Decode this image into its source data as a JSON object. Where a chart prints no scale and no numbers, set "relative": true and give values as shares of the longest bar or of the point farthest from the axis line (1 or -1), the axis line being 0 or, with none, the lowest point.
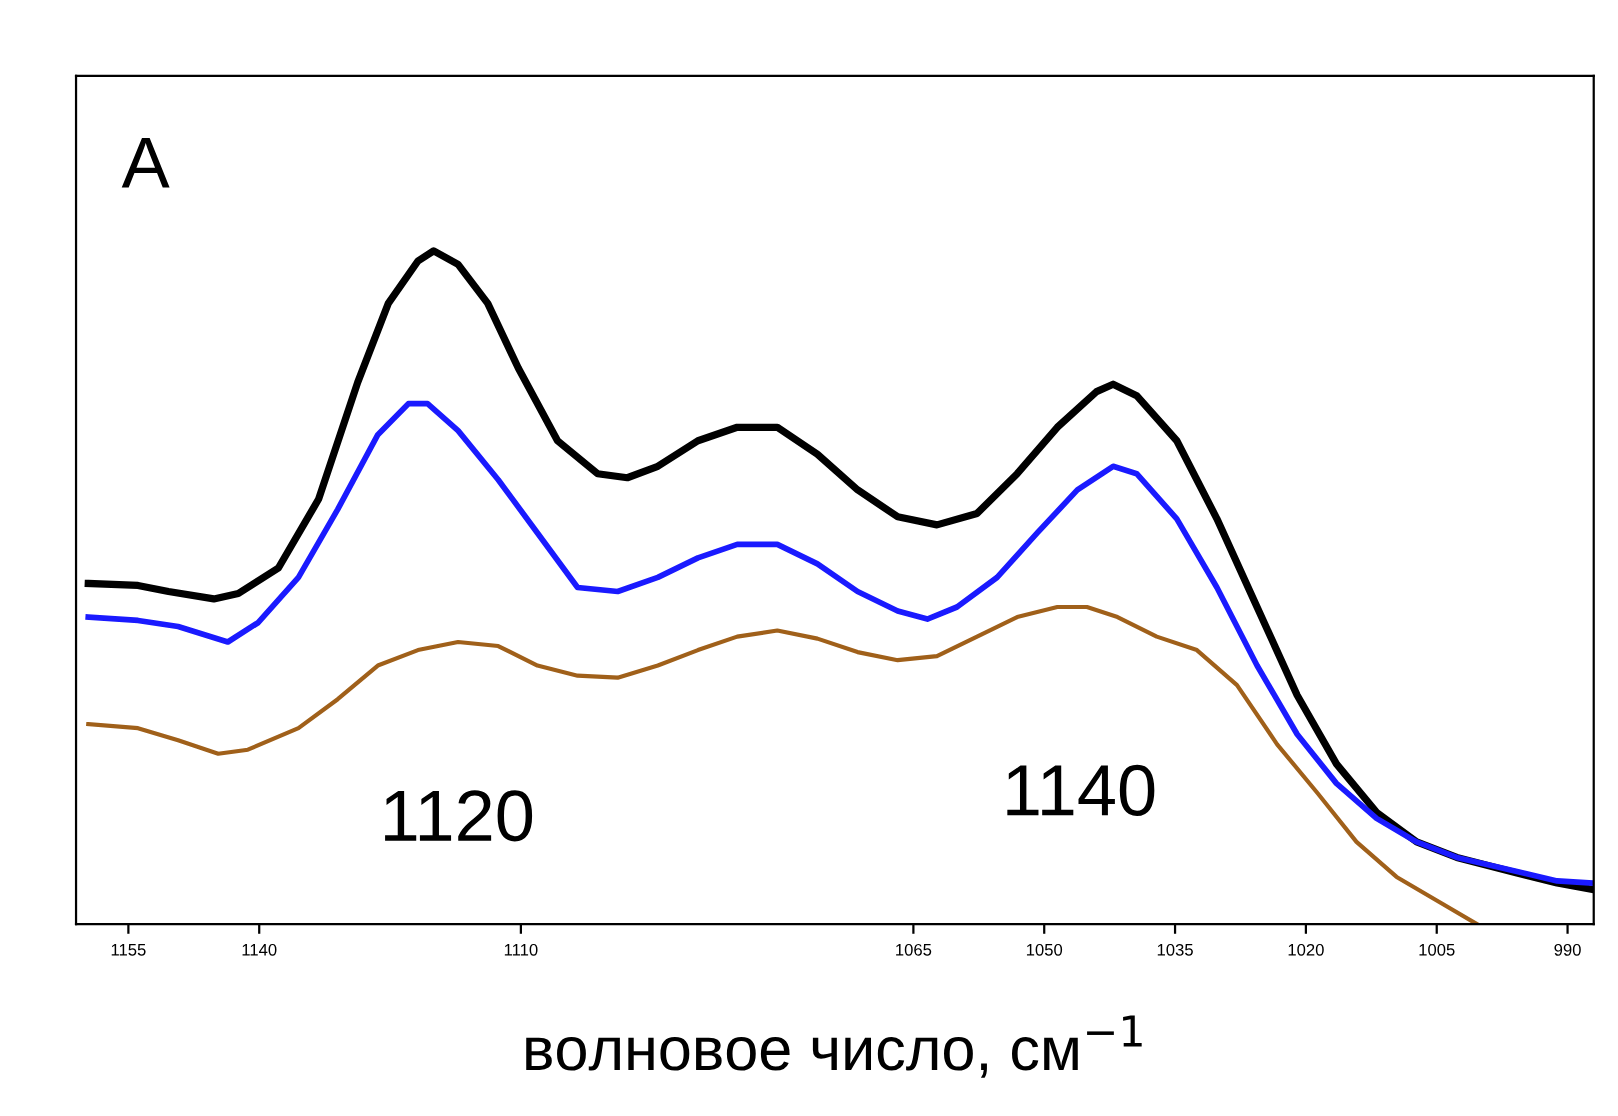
{
  "chart_data": {
    "type": "line",
    "relative": true,
    "xlabel": "волновое число, см$^{−1}$",
    "annotations": [
      "A",
      "1120",
      "1140"
    ],
    "xlim": [
      1161,
      987
    ],
    "xticks": [
      1155,
      1140,
      1110,
      1065,
      1050,
      1035,
      1020,
      1005,
      990
    ],
    "tick_labels": "x",
    "grid": false,
    "legend": false,
    "marker": "none",
    "line_style": "solid",
    "series": [
      {
        "color": "#000000",
        "x": [
          1159.6,
          1153.9,
          1150.4,
          1145.2,
          1142.4,
          1137.8,
          1133.2,
          1128.7,
          1125.2,
          1121.8,
          1120.0,
          1117.2,
          1113.8,
          1110.3,
          1105.8,
          1101.2,
          1097.8,
          1094.3,
          1089.7,
          1085.2,
          1080.6,
          1076.0,
          1071.4,
          1066.8,
          1062.3,
          1057.7,
          1053.1,
          1048.5,
          1044.0,
          1042.1,
          1039.4,
          1034.8,
          1030.2,
          1025.6,
          1021.0,
          1016.5,
          1011.9,
          1007.3,
          1002.7,
          995.8,
          991.2,
          987.4
        ],
        "values": [
          0.506,
          0.503,
          0.494,
          0.483,
          0.491,
          0.529,
          0.631,
          0.805,
          0.922,
          0.985,
          1,
          0.98,
          0.922,
          0.826,
          0.718,
          0.669,
          0.663,
          0.68,
          0.718,
          0.738,
          0.738,
          0.698,
          0.645,
          0.605,
          0.593,
          0.61,
          0.669,
          0.738,
          0.791,
          0.802,
          0.785,
          0.718,
          0.602,
          0.471,
          0.34,
          0.238,
          0.166,
          0.122,
          0.099,
          0.076,
          0.061,
          0.052
        ]
      },
      {
        "color": "#1a1aff",
        "x": [
          1159.6,
          1153.9,
          1149.3,
          1143.6,
          1140.1,
          1135.5,
          1131.0,
          1126.4,
          1122.9,
          1120.7,
          1117.2,
          1112.6,
          1108.1,
          1103.5,
          1098.9,
          1094.3,
          1089.7,
          1085.2,
          1080.6,
          1076.0,
          1071.4,
          1066.8,
          1063.4,
          1060.0,
          1055.4,
          1050.8,
          1046.2,
          1042.1,
          1039.4,
          1034.8,
          1030.2,
          1025.6,
          1021.0,
          1016.5,
          1011.9,
          1007.3,
          1002.7,
          995.8,
          991.2,
          987.4
        ],
        "values": [
          0.456,
          0.451,
          0.442,
          0.419,
          0.448,
          0.515,
          0.616,
          0.727,
          0.773,
          0.773,
          0.733,
          0.66,
          0.581,
          0.5,
          0.494,
          0.515,
          0.544,
          0.564,
          0.564,
          0.535,
          0.494,
          0.465,
          0.453,
          0.471,
          0.515,
          0.581,
          0.645,
          0.68,
          0.669,
          0.602,
          0.5,
          0.384,
          0.282,
          0.209,
          0.157,
          0.122,
          0.099,
          0.078,
          0.064,
          0.061
        ]
      },
      {
        "color": "#a0601a",
        "x": [
          1159.6,
          1153.9,
          1149.3,
          1144.7,
          1141.3,
          1135.5,
          1131.0,
          1126.4,
          1121.8,
          1117.2,
          1112.6,
          1108.1,
          1103.5,
          1098.9,
          1094.3,
          1089.7,
          1085.2,
          1080.6,
          1076.0,
          1071.4,
          1066.8,
          1062.3,
          1057.7,
          1053.1,
          1048.5,
          1045.1,
          1041.6,
          1037.1,
          1032.5,
          1027.9,
          1023.3,
          1018.7,
          1014.2,
          1009.6,
          1005.0,
          1000.4
        ],
        "values": [
          0.297,
          0.291,
          0.273,
          0.253,
          0.259,
          0.291,
          0.334,
          0.384,
          0.407,
          0.419,
          0.413,
          0.384,
          0.369,
          0.366,
          0.384,
          0.407,
          0.427,
          0.436,
          0.424,
          0.404,
          0.392,
          0.398,
          0.427,
          0.456,
          0.471,
          0.471,
          0.456,
          0.427,
          0.407,
          0.355,
          0.267,
          0.195,
          0.122,
          0.07,
          0.035,
          0
        ]
      }
    ]
  }
}
